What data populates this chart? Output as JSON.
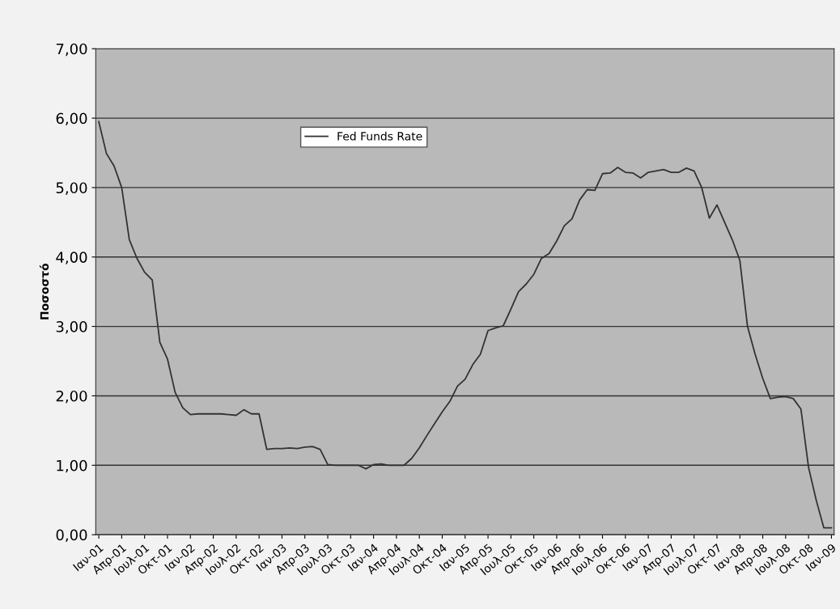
{
  "chart_data": {
    "type": "line",
    "ylabel": "Ποσοστό",
    "categories": [
      "Ιαν-01",
      null,
      null,
      "Απρ-01",
      null,
      null,
      "Ιουλ-01",
      null,
      null,
      "Οκτ-01",
      null,
      null,
      "Ιαν-02",
      null,
      null,
      "Απρ-02",
      null,
      null,
      "Ιουλ-02",
      null,
      null,
      "Οκτ-02",
      null,
      null,
      "Ιαν-03",
      null,
      null,
      "Απρ-03",
      null,
      null,
      "Ιουλ-03",
      null,
      null,
      "Οκτ-03",
      null,
      null,
      "Ιαν-04",
      null,
      null,
      "Απρ-04",
      null,
      null,
      "Ιουλ-04",
      null,
      null,
      "Οκτ-04",
      null,
      null,
      "Ιαν-05",
      null,
      null,
      "Απρ-05",
      null,
      null,
      "Ιουλ-05",
      null,
      null,
      "Οκτ-05",
      null,
      null,
      "Ιαν-06",
      null,
      null,
      "Απρ-06",
      null,
      null,
      "Ιουλ-06",
      null,
      null,
      "Οκτ-06",
      null,
      null,
      "Ιαν-07",
      null,
      null,
      "Απρ-07",
      null,
      null,
      "Ιουλ-07",
      null,
      null,
      "Οκτ-07",
      null,
      null,
      "Ιαν-08",
      null,
      null,
      "Απρ-08",
      null,
      null,
      "Ιουλ-08",
      null,
      null,
      "Οκτ-08",
      null,
      null,
      "Ιαν-09"
    ],
    "series": [
      {
        "name": "Fed Funds Rate",
        "color": "#333333",
        "values": [
          5.95,
          5.49,
          5.31,
          5.0,
          4.25,
          3.98,
          3.78,
          3.67,
          2.77,
          2.53,
          2.05,
          1.83,
          1.73,
          1.74,
          1.74,
          1.74,
          1.74,
          1.73,
          1.72,
          1.8,
          1.74,
          1.74,
          1.23,
          1.24,
          1.24,
          1.25,
          1.24,
          1.26,
          1.27,
          1.23,
          1.01,
          1.0,
          1.0,
          1.0,
          1.0,
          0.95,
          1.01,
          1.02,
          1.0,
          1.0,
          1.0,
          1.1,
          1.25,
          1.43,
          1.6,
          1.77,
          1.92,
          2.14,
          2.24,
          2.45,
          2.6,
          2.94,
          2.98,
          3.01,
          3.25,
          3.5,
          3.61,
          3.75,
          3.98,
          4.05,
          4.23,
          4.45,
          4.55,
          4.82,
          4.97,
          4.96,
          5.2,
          5.21,
          5.29,
          5.22,
          5.21,
          5.14,
          5.22,
          5.24,
          5.26,
          5.22,
          5.22,
          5.28,
          5.24,
          5.0,
          4.56,
          4.75,
          4.5,
          4.25,
          3.95,
          3.0,
          2.6,
          2.25,
          1.96,
          1.98,
          1.99,
          1.96,
          1.81,
          0.97,
          0.5,
          0.1,
          0.1
        ]
      }
    ],
    "ylim": [
      0,
      7
    ],
    "yticks": [
      {
        "value": 0,
        "label": "0,00"
      },
      {
        "value": 1,
        "label": "1,00"
      },
      {
        "value": 2,
        "label": "2,00"
      },
      {
        "value": 3,
        "label": "3,00"
      },
      {
        "value": 4,
        "label": "4,00"
      },
      {
        "value": 5,
        "label": "5,00"
      },
      {
        "value": 6,
        "label": "6,00"
      },
      {
        "value": 7,
        "label": "7,00"
      }
    ],
    "grid": "y",
    "legend": "top left",
    "marker": "none",
    "line_style": "solid"
  }
}
